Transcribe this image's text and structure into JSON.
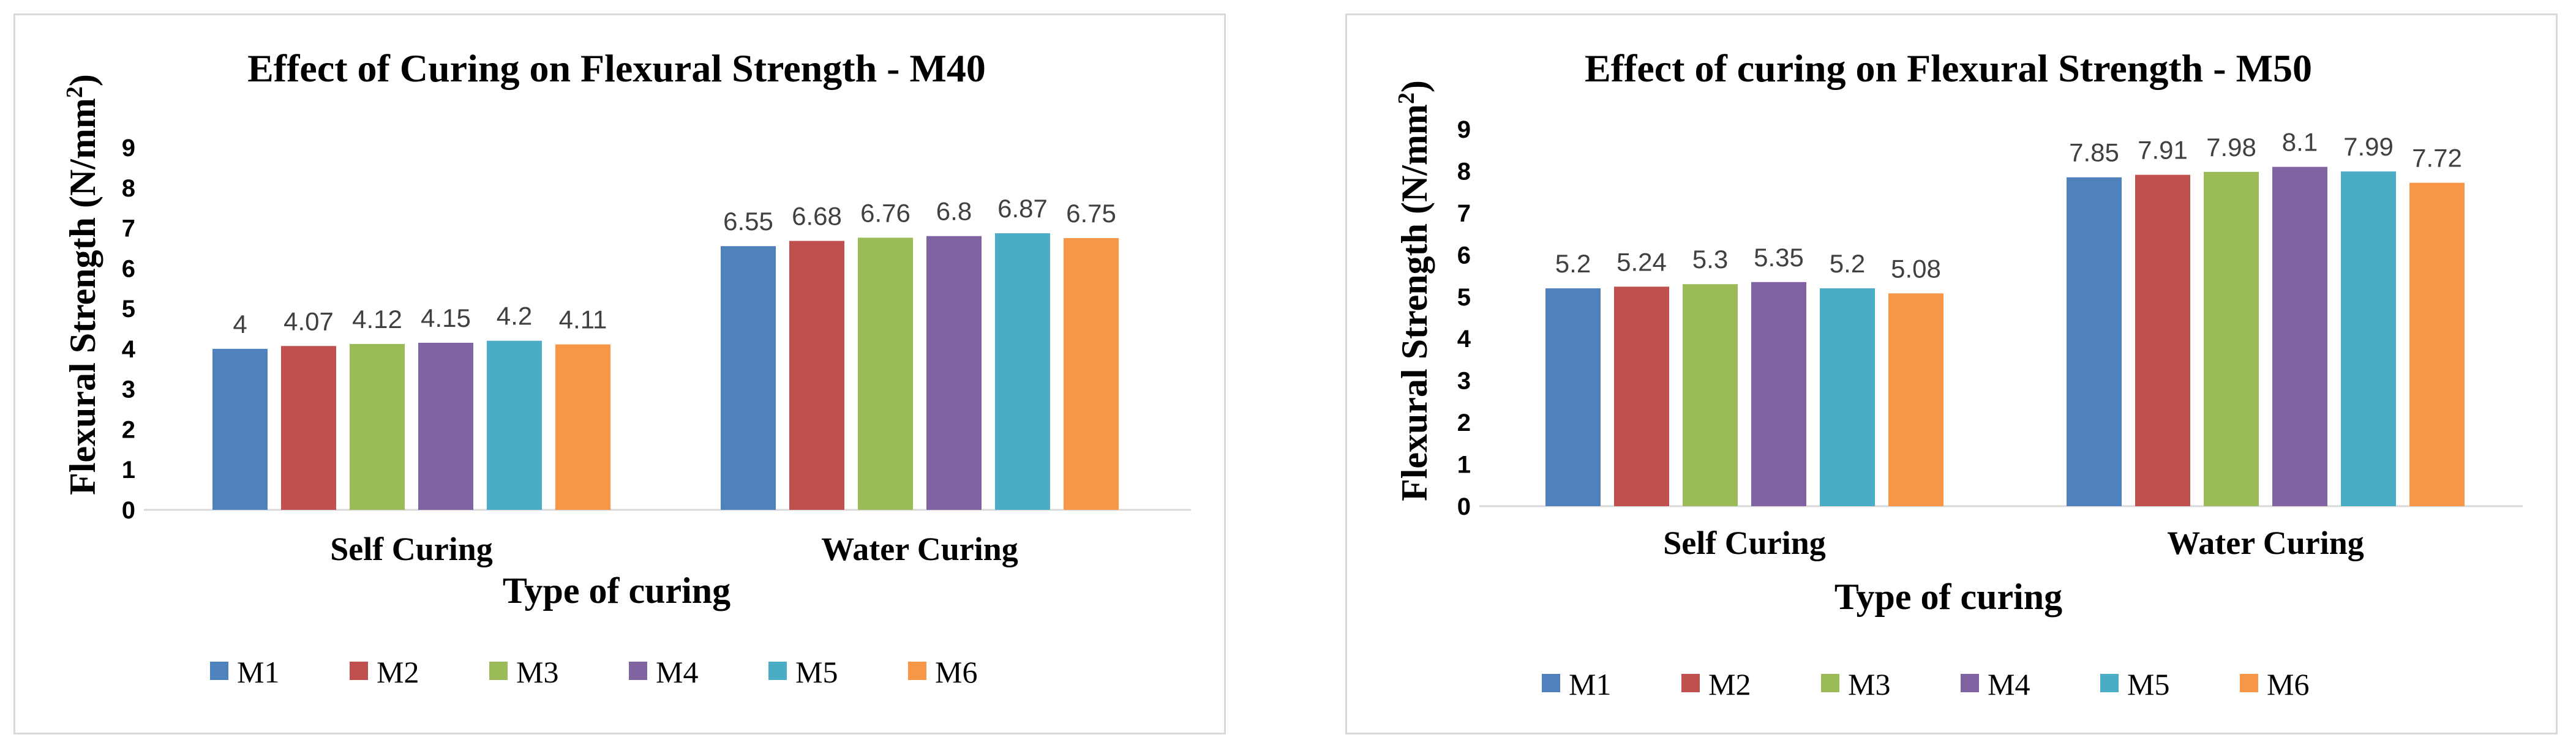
{
  "chart_data": [
    {
      "type": "bar",
      "title": "Effect of Curing on Flexural Strength - M40",
      "xlabel": "Type of curing",
      "ylabel": "Flexural Strength (N/mm",
      "ylabel_sup": "2",
      "ylabel_end": ")",
      "ylim": [
        0,
        9
      ],
      "yticks": [
        "0",
        "1",
        "2",
        "3",
        "4",
        "5",
        "6",
        "7",
        "8",
        "9"
      ],
      "categories": [
        "Self Curing",
        "Water Curing"
      ],
      "series": [
        {
          "name": "M1",
          "color": "#4f81bd",
          "values": [
            4,
            6.55
          ],
          "labels": [
            "4",
            "6.55"
          ]
        },
        {
          "name": "M2",
          "color": "#c0504d",
          "values": [
            4.07,
            6.68
          ],
          "labels": [
            "4.07",
            "6.68"
          ]
        },
        {
          "name": "M3",
          "color": "#9bbb59",
          "values": [
            4.12,
            6.76
          ],
          "labels": [
            "4.12",
            "6.76"
          ]
        },
        {
          "name": "M4",
          "color": "#8064a2",
          "values": [
            4.15,
            6.8
          ],
          "labels": [
            "4.15",
            "6.8"
          ]
        },
        {
          "name": "M5",
          "color": "#4bacc6",
          "values": [
            4.2,
            6.87
          ],
          "labels": [
            "4.2",
            "6.87"
          ]
        },
        {
          "name": "M6",
          "color": "#f79646",
          "values": [
            4.11,
            6.75
          ],
          "labels": [
            "4.11",
            "6.75"
          ]
        }
      ],
      "grid": false,
      "legend": "bottom"
    },
    {
      "type": "bar",
      "title": "Effect of curing on Flexural Strength - M50",
      "xlabel": "Type of curing",
      "ylabel": "Flexural Strength (N/mm",
      "ylabel_sup": "2",
      "ylabel_end": ")",
      "ylim": [
        0,
        9
      ],
      "yticks": [
        "0",
        "1",
        "2",
        "3",
        "4",
        "5",
        "6",
        "7",
        "8",
        "9"
      ],
      "categories": [
        "Self Curing",
        "Water Curing"
      ],
      "series": [
        {
          "name": "M1",
          "color": "#4f81bd",
          "values": [
            5.2,
            7.85
          ],
          "labels": [
            "5.2",
            "7.85"
          ]
        },
        {
          "name": "M2",
          "color": "#c0504d",
          "values": [
            5.24,
            7.91
          ],
          "labels": [
            "5.24",
            "7.91"
          ]
        },
        {
          "name": "M3",
          "color": "#9bbb59",
          "values": [
            5.3,
            7.98
          ],
          "labels": [
            "5.3",
            "7.98"
          ]
        },
        {
          "name": "M4",
          "color": "#8064a2",
          "values": [
            5.35,
            8.1
          ],
          "labels": [
            "5.35",
            "8.1"
          ]
        },
        {
          "name": "M5",
          "color": "#4bacc6",
          "values": [
            5.2,
            7.99
          ],
          "labels": [
            "5.2",
            "7.99"
          ]
        },
        {
          "name": "M6",
          "color": "#f79646",
          "values": [
            5.08,
            7.72
          ],
          "labels": [
            "5.08",
            "7.72"
          ]
        }
      ],
      "grid": false,
      "legend": "bottom"
    }
  ]
}
